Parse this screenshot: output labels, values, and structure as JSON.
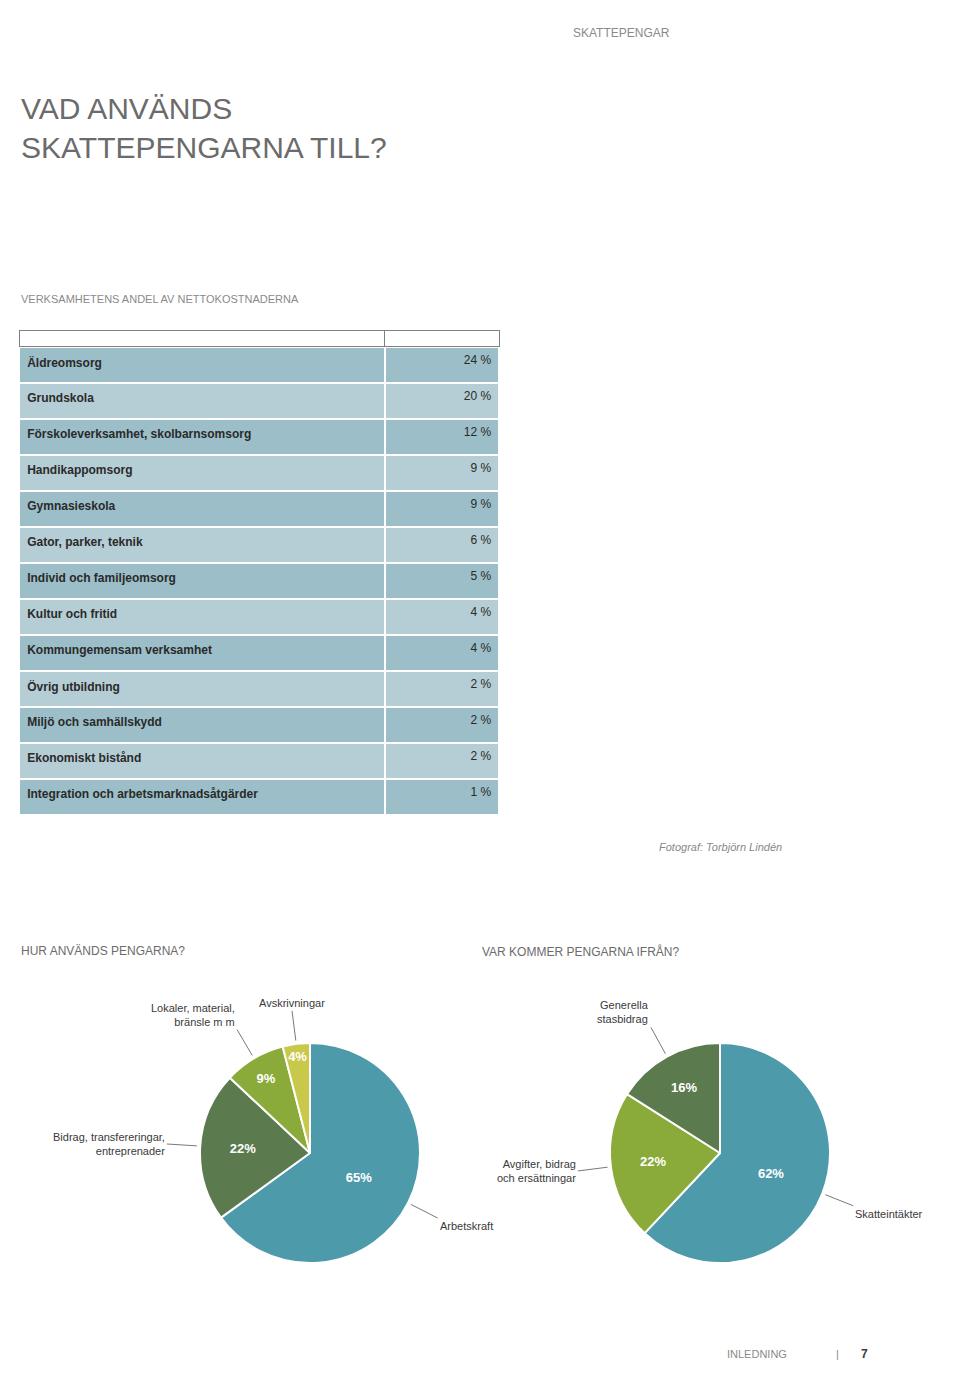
{
  "chart_data": [
    {
      "type": "table",
      "title": "VAD ANVÄNDS\nSKATTEPENGARNA TILL?",
      "subtitle": "VERKSAMHETENS ANDEL AV NETTOKOSTNADERNA",
      "annotations": [
        "SKATTEPENGAR",
        "Fotograf: Torbjörn Lindén",
        "INLEDNING",
        "|",
        "7"
      ],
      "categories": [
        "Äldreomsorg",
        "Grundskola",
        "Förskoleverksamhet, skolbarnsomsorg",
        "Handikappomsorg",
        "Gymnasieskola",
        "Gator, parker, teknik",
        "Individ och familjeomsorg",
        "Kultur och fritid",
        "Kommungemensam verksamhet",
        "Övrig utbildning",
        "Miljö och samhällskydd",
        "Ekonomiskt bistånd",
        "Integration och arbetsmarknadsåtgärder"
      ],
      "values": [
        24,
        20,
        12,
        9,
        9,
        6,
        5,
        4,
        4,
        2,
        2,
        2,
        1
      ],
      "value_labels": [
        "24 %",
        "20 %",
        "12 %",
        "9 %",
        "9 %",
        "6 %",
        "5 %",
        "4 %",
        "4 %",
        "2 %",
        "2 %",
        "2 %",
        "1 %"
      ],
      "colors": [
        "#9bbec8",
        "#b5cdd5",
        "#9bbec8",
        "#b5cdd5",
        "#9bbec8",
        "#b5cdd5",
        "#9bbec8",
        "#b5cdd5",
        "#9bbec8",
        "#b5cdd5",
        "#9bbec8",
        "#b5cdd5",
        "#9bbec8"
      ]
    },
    {
      "type": "pie",
      "title": "HUR ANVÄNDS PENGARNA?",
      "categories": [
        "Arbetskraft",
        "Bidrag, transfereringar,\nentreprenader",
        "Lokaler, material,\nbränsle m m",
        "Avskrivningar"
      ],
      "values": [
        65,
        22,
        9,
        4
      ],
      "value_labels": [
        "65%",
        "22%",
        "9%",
        "4%"
      ],
      "colors": [
        "#4d9aaa",
        "#5b7a4e",
        "#8aaa3a",
        "#c8c84a"
      ],
      "data_labels": true
    },
    {
      "type": "pie",
      "title": "VAR KOMMER PENGARNA IFRÅN?",
      "categories": [
        "Skatteintäkter",
        "Avgifter, bidrag\noch ersättningar",
        "Generella\nstasbidrag"
      ],
      "values": [
        62,
        22,
        16
      ],
      "value_labels": [
        "62%",
        "22%",
        "16%"
      ],
      "colors": [
        "#4d9aaa",
        "#8aaa3a",
        "#5b7a4e"
      ],
      "data_labels": true
    }
  ]
}
